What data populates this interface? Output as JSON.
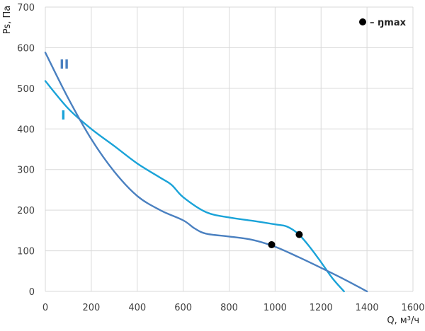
{
  "chart_data": {
    "type": "line",
    "xlabel": "Q, м³/ч",
    "ylabel": "Ps, Па",
    "xlim": [
      0,
      1600
    ],
    "ylim": [
      0,
      700
    ],
    "x_ticks": [
      "0",
      "200",
      "400",
      "600",
      "800",
      "1000",
      "1200",
      "1400",
      "1600"
    ],
    "y_ticks": [
      "0",
      "100",
      "200",
      "300",
      "400",
      "500",
      "600",
      "700"
    ],
    "grid": true,
    "legend": {
      "position": "top-right",
      "marker_label": "– ŋmax"
    },
    "series": [
      {
        "name": "I",
        "color": "#1aa3d8",
        "x": [
          0,
          100,
          200,
          300,
          400,
          500,
          550,
          600,
          700,
          800,
          900,
          1000,
          1050,
          1100,
          1150,
          1200,
          1250,
          1300
        ],
        "y": [
          518,
          450,
          400,
          358,
          315,
          280,
          262,
          232,
          195,
          182,
          174,
          165,
          160,
          142,
          110,
          72,
          32,
          0
        ],
        "eta_max": {
          "x": 1105,
          "y": 140
        }
      },
      {
        "name": "II",
        "color": "#4a80c0",
        "x": [
          0,
          100,
          200,
          300,
          400,
          500,
          600,
          650,
          700,
          800,
          900,
          1000,
          1100,
          1200,
          1300,
          1400
        ],
        "y": [
          588,
          475,
          375,
          295,
          235,
          200,
          175,
          155,
          142,
          135,
          127,
          110,
          85,
          58,
          30,
          0
        ],
        "eta_max": {
          "x": 985,
          "y": 115
        }
      }
    ]
  }
}
